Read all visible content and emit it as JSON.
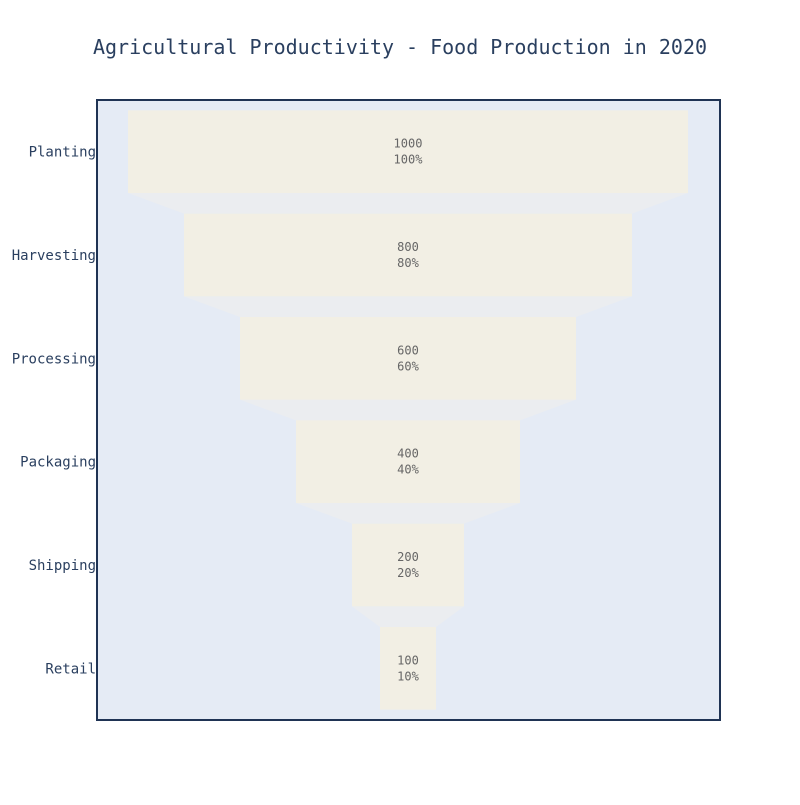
{
  "chart_data": {
    "type": "funnel",
    "title": "Agricultural Productivity - Food Production in 2020",
    "categories": [
      "Planting",
      "Harvesting",
      "Processing",
      "Packaging",
      "Shipping",
      "Retail"
    ],
    "values": [
      1000,
      800,
      600,
      400,
      200,
      100
    ],
    "percent_labels": [
      "100%",
      "80%",
      "60%",
      "40%",
      "20%",
      "10%"
    ],
    "max_value": 1000,
    "grid": false,
    "legend": "none",
    "colors": {
      "plot_background": "#e5ebf5",
      "plot_border": "#1f3354",
      "bar_fill": "#f2efe4",
      "connector_fill": "#ebedf0",
      "title_text": "#2a3f5f",
      "stage_text": "#2a3f5f",
      "value_text": "#666666"
    }
  }
}
